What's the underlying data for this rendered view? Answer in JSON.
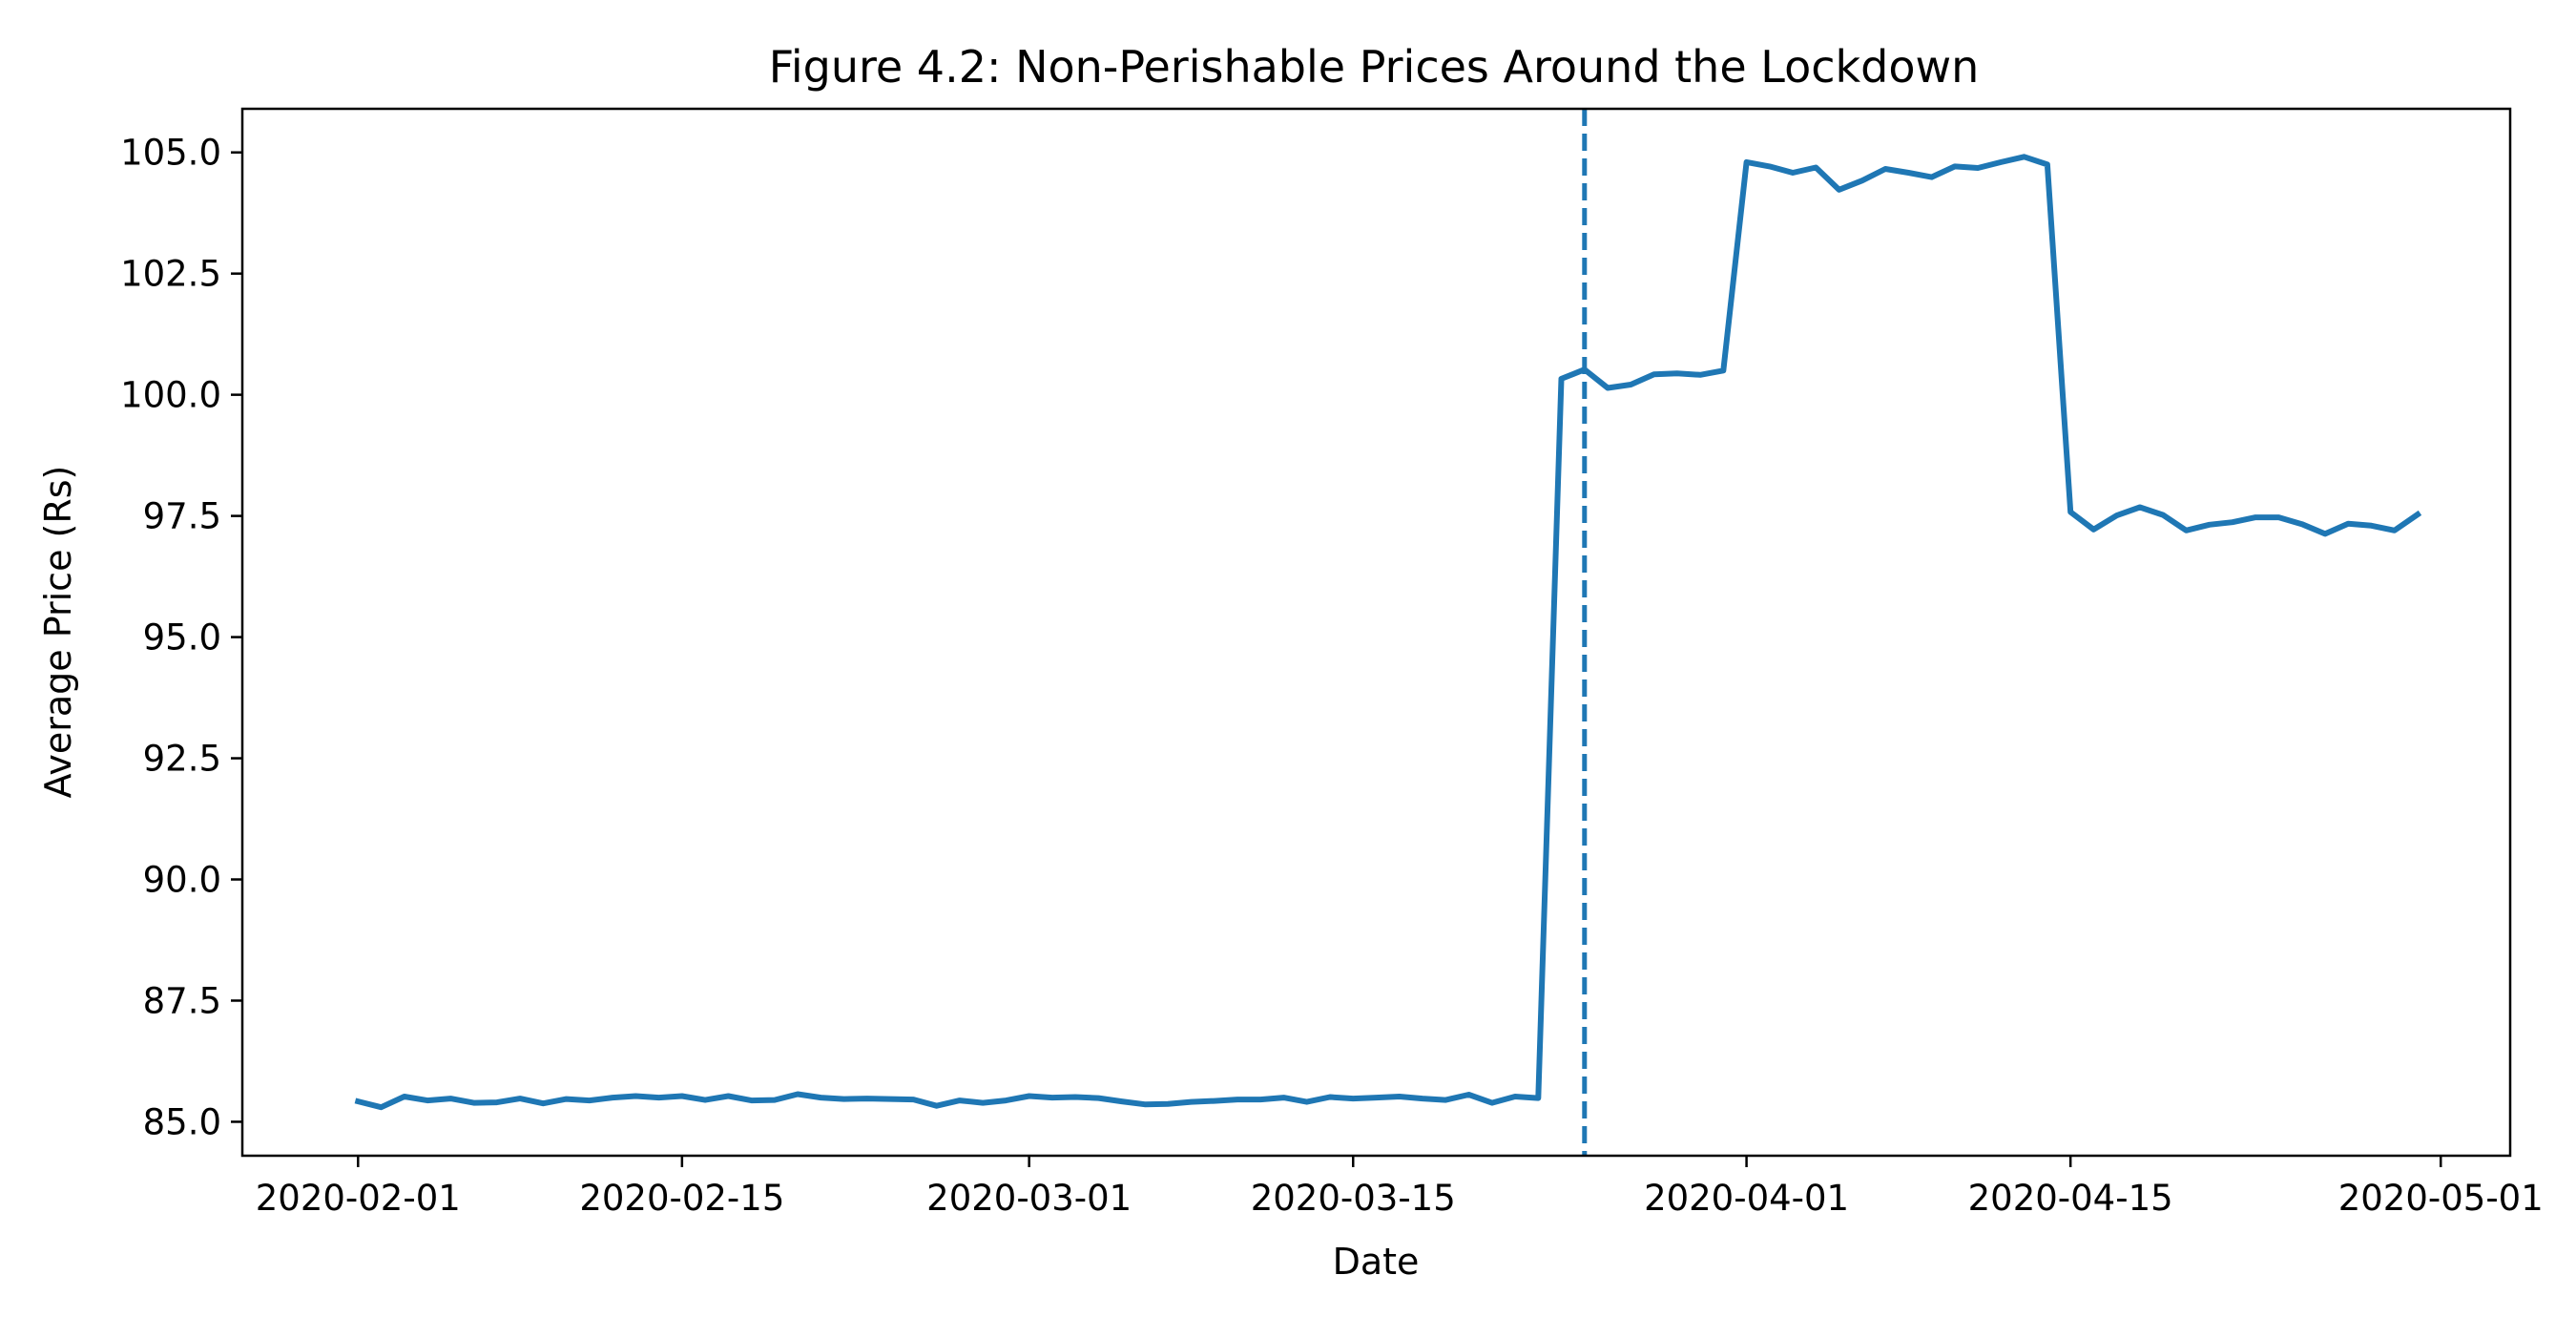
{
  "chart_data": {
    "type": "line",
    "title": "Figure 4.2: Non-Perishable Prices Around the Lockdown",
    "xlabel": "Date",
    "ylabel": "Average Price (Rs)",
    "x_ticks": [
      "2020-02-01",
      "2020-02-15",
      "2020-03-01",
      "2020-03-15",
      "2020-04-01",
      "2020-04-15",
      "2020-05-01"
    ],
    "y_ticks": [
      "85.0",
      "87.5",
      "90.0",
      "92.5",
      "95.0",
      "97.5",
      "100.0",
      "102.5",
      "105.0"
    ],
    "xlim": [
      "2020-01-27",
      "2020-05-04"
    ],
    "ylim": [
      84.3,
      105.9
    ],
    "grid": false,
    "series_color": "#1f77b4",
    "lockdown_marker": {
      "date": "2020-03-25",
      "style": "dashed"
    },
    "series": [
      {
        "x": [
          "2020-02-01",
          "2020-02-02",
          "2020-02-03",
          "2020-02-04",
          "2020-02-05",
          "2020-02-06",
          "2020-02-07",
          "2020-02-08",
          "2020-02-09",
          "2020-02-10",
          "2020-02-11",
          "2020-02-12",
          "2020-02-13",
          "2020-02-14",
          "2020-02-15",
          "2020-02-16",
          "2020-02-17",
          "2020-02-18",
          "2020-02-19",
          "2020-02-20",
          "2020-02-21",
          "2020-02-22",
          "2020-02-23",
          "2020-02-24",
          "2020-02-25",
          "2020-02-26",
          "2020-02-27",
          "2020-02-28",
          "2020-02-29",
          "2020-03-01",
          "2020-03-02",
          "2020-03-03",
          "2020-03-04",
          "2020-03-05",
          "2020-03-06",
          "2020-03-07",
          "2020-03-08",
          "2020-03-09",
          "2020-03-10",
          "2020-03-11",
          "2020-03-12",
          "2020-03-13",
          "2020-03-14",
          "2020-03-15",
          "2020-03-16",
          "2020-03-17",
          "2020-03-18",
          "2020-03-19",
          "2020-03-20",
          "2020-03-21",
          "2020-03-22",
          "2020-03-23",
          "2020-03-24",
          "2020-03-25",
          "2020-03-26",
          "2020-03-27",
          "2020-03-28",
          "2020-03-29",
          "2020-03-30",
          "2020-03-31",
          "2020-04-01",
          "2020-04-02",
          "2020-04-03",
          "2020-04-04",
          "2020-04-05",
          "2020-04-06",
          "2020-04-07",
          "2020-04-08",
          "2020-04-09",
          "2020-04-10",
          "2020-04-11",
          "2020-04-12",
          "2020-04-13",
          "2020-04-14",
          "2020-04-15",
          "2020-04-16",
          "2020-04-17",
          "2020-04-18",
          "2020-04-19",
          "2020-04-20",
          "2020-04-21",
          "2020-04-22",
          "2020-04-23",
          "2020-04-24",
          "2020-04-25",
          "2020-04-26",
          "2020-04-27",
          "2020-04-28",
          "2020-04-29",
          "2020-04-30"
        ],
        "y": [
          85.42,
          85.3,
          85.52,
          85.44,
          85.48,
          85.39,
          85.4,
          85.48,
          85.38,
          85.47,
          85.44,
          85.5,
          85.53,
          85.5,
          85.53,
          85.45,
          85.53,
          85.44,
          85.45,
          85.57,
          85.5,
          85.47,
          85.48,
          85.47,
          85.46,
          85.33,
          85.44,
          85.39,
          85.44,
          85.53,
          85.5,
          85.51,
          85.49,
          85.42,
          85.36,
          85.37,
          85.41,
          85.43,
          85.46,
          85.46,
          85.5,
          85.41,
          85.51,
          85.48,
          85.5,
          85.52,
          85.48,
          85.45,
          85.56,
          85.39,
          85.52,
          85.49,
          100.33,
          100.52,
          100.14,
          100.21,
          100.42,
          100.44,
          100.41,
          100.5,
          104.8,
          104.71,
          104.58,
          104.69,
          104.23,
          104.42,
          104.66,
          104.58,
          104.49,
          104.71,
          104.68,
          104.8,
          104.91,
          104.75,
          97.58,
          97.22,
          97.51,
          97.68,
          97.52,
          97.2,
          97.32,
          97.37,
          97.47,
          97.47,
          97.33,
          97.13,
          97.34,
          97.3,
          97.2,
          97.53
        ]
      }
    ]
  }
}
